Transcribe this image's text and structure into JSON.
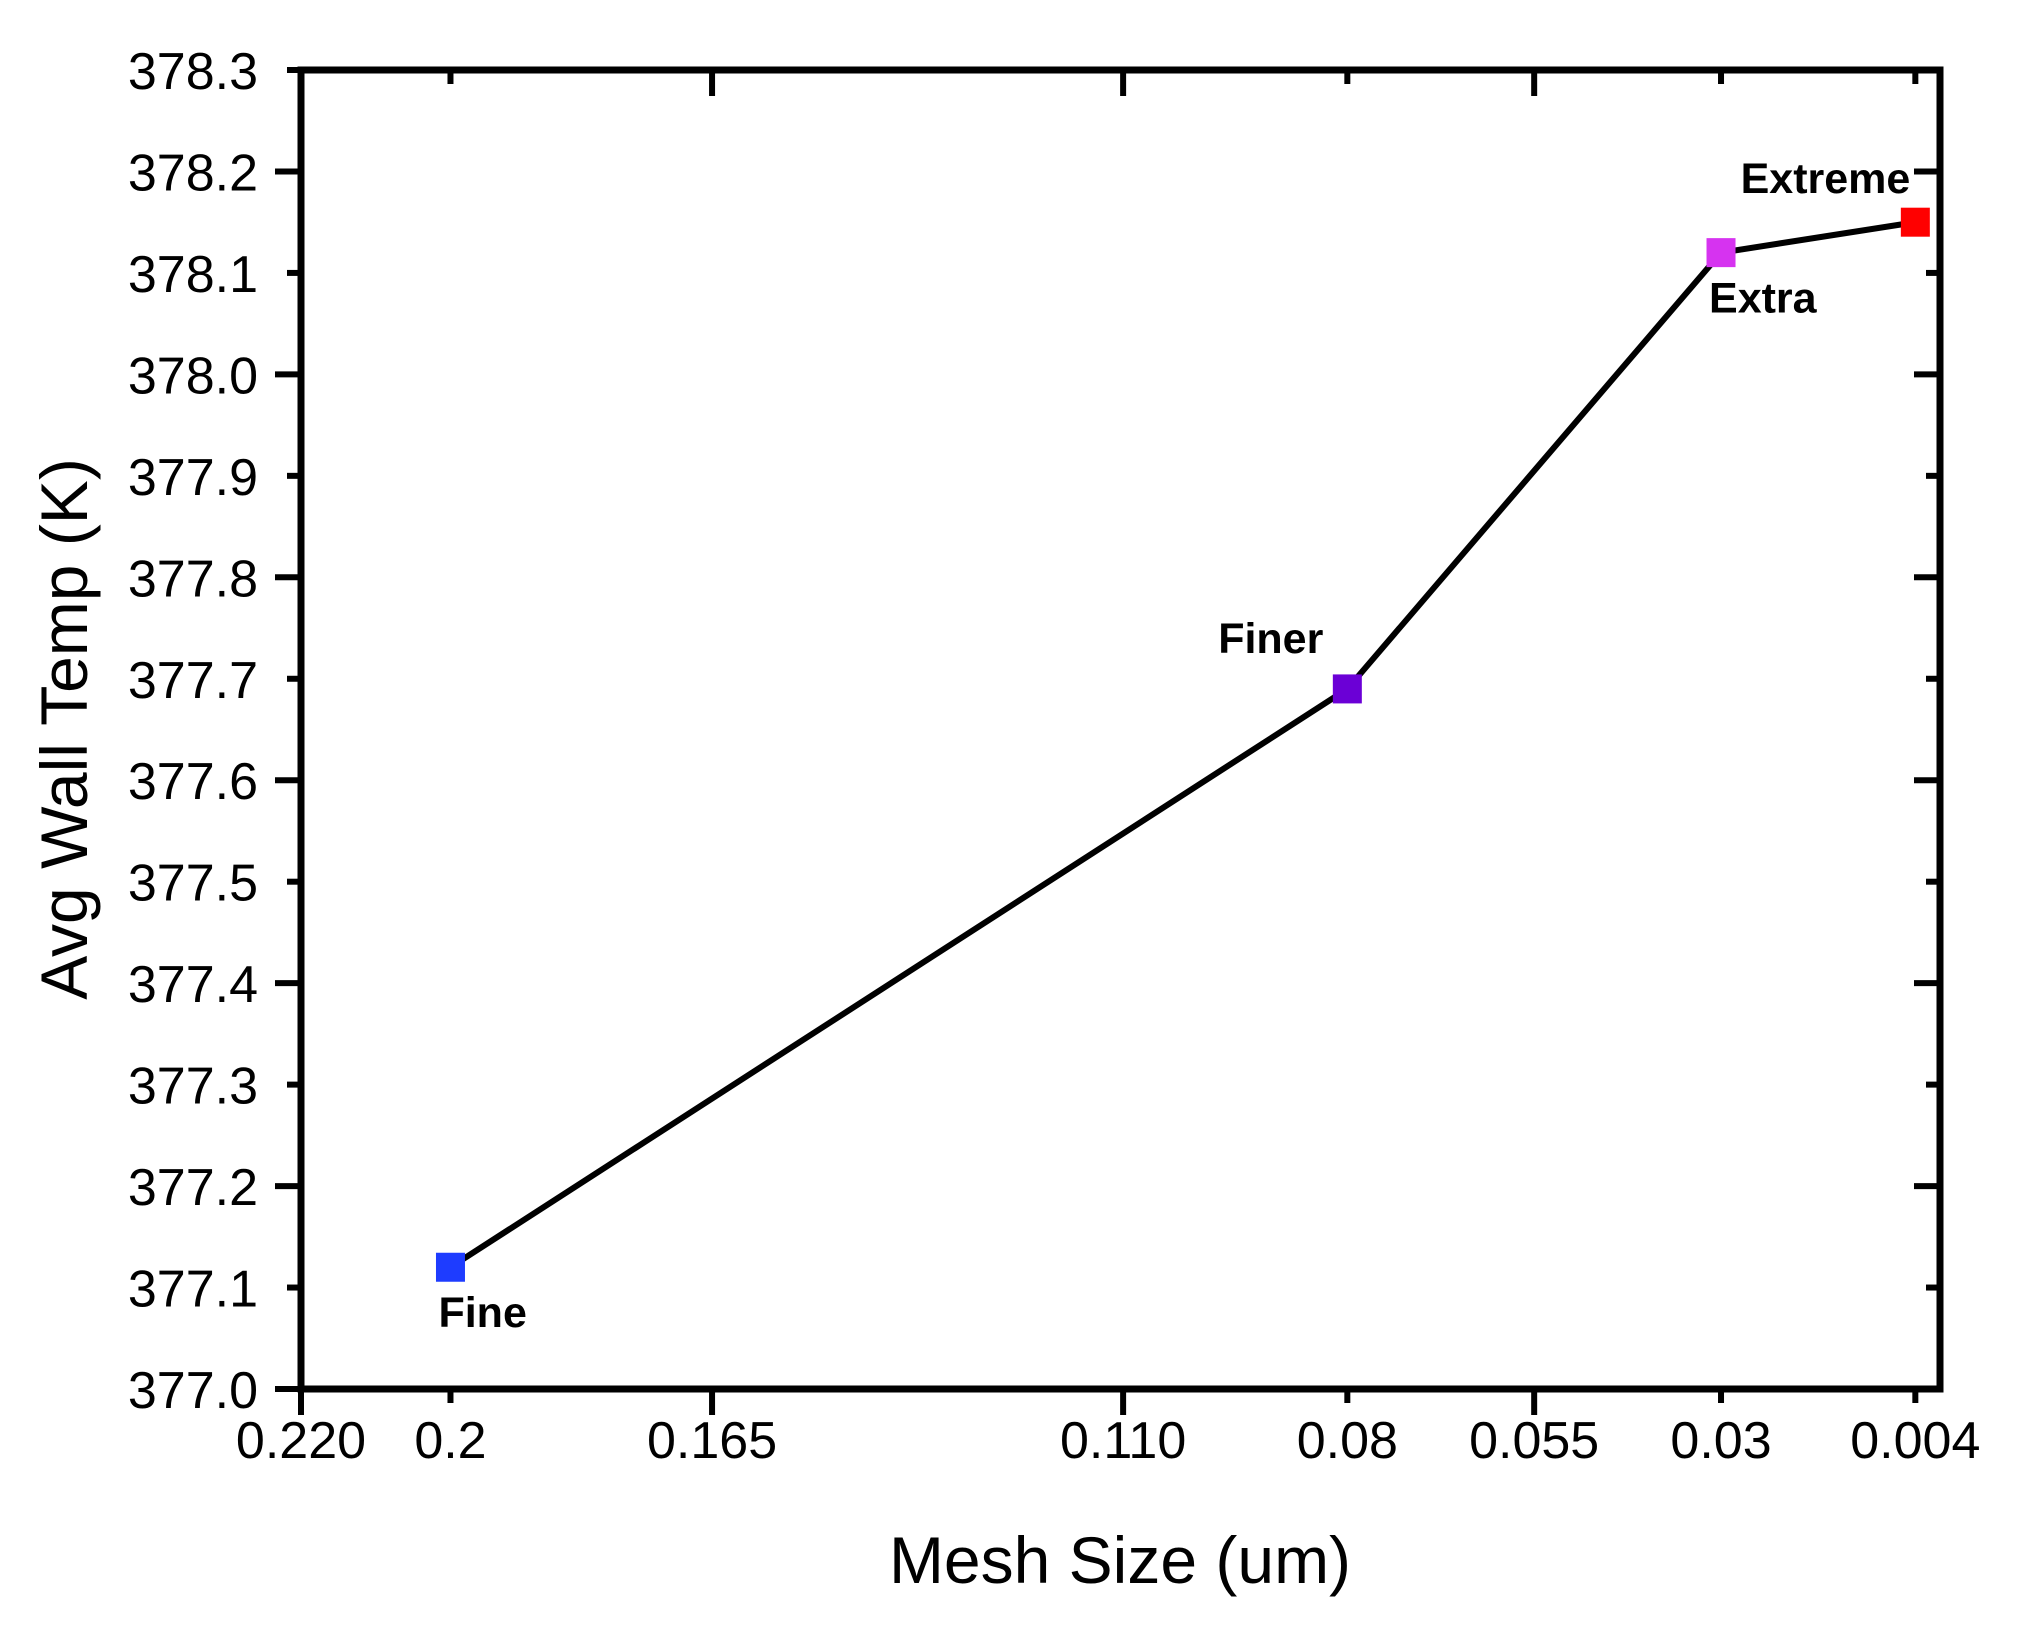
{
  "chart_data": {
    "type": "line",
    "title": "",
    "xlabel": "Mesh Size (um)",
    "ylabel": "Avg Wall Temp (K)",
    "x_reversed": true,
    "xlim": [
      0.22,
      0.0007
    ],
    "ylim": [
      377.0,
      378.3
    ],
    "grid": false,
    "legend": "none",
    "x_ticks": [
      {
        "value": 0.22,
        "label": "0.220",
        "major": true
      },
      {
        "value": 0.2,
        "label": "0.2",
        "major": false
      },
      {
        "value": 0.165,
        "label": "0.165",
        "major": true
      },
      {
        "value": 0.11,
        "label": "0.110",
        "major": true
      },
      {
        "value": 0.08,
        "label": "0.08",
        "major": false
      },
      {
        "value": 0.055,
        "label": "0.055",
        "major": true
      },
      {
        "value": 0.03,
        "label": "0.03",
        "major": false
      },
      {
        "value": 0.004,
        "label": "0.004",
        "major": false
      }
    ],
    "y_ticks": [
      {
        "value": 377.0,
        "label": "377.0",
        "major": true
      },
      {
        "value": 377.1,
        "label": "377.1",
        "major": false
      },
      {
        "value": 377.2,
        "label": "377.2",
        "major": true
      },
      {
        "value": 377.3,
        "label": "377.3",
        "major": false
      },
      {
        "value": 377.4,
        "label": "377.4",
        "major": true
      },
      {
        "value": 377.5,
        "label": "377.5",
        "major": false
      },
      {
        "value": 377.6,
        "label": "377.6",
        "major": true
      },
      {
        "value": 377.7,
        "label": "377.7",
        "major": false
      },
      {
        "value": 377.8,
        "label": "377.8",
        "major": true
      },
      {
        "value": 377.9,
        "label": "377.9",
        "major": false
      },
      {
        "value": 378.0,
        "label": "378.0",
        "major": true
      },
      {
        "value": 378.1,
        "label": "378.1",
        "major": false
      },
      {
        "value": 378.2,
        "label": "378.2",
        "major": true
      },
      {
        "value": 378.3,
        "label": "378.3",
        "major": false
      }
    ],
    "series": [
      {
        "name": "Avg Wall Temp",
        "line_color": "#000000",
        "points": [
          {
            "x": 0.2,
            "y": 377.12,
            "label": "Fine",
            "color": "#1E3CFF",
            "label_pos": "below-right"
          },
          {
            "x": 0.08,
            "y": 377.69,
            "label": "Finer",
            "color": "#6B00D6",
            "label_pos": "above-left"
          },
          {
            "x": 0.03,
            "y": 378.12,
            "label": "Extra",
            "color": "#D633F0",
            "label_pos": "below-right"
          },
          {
            "x": 0.004,
            "y": 378.15,
            "label": "Extreme",
            "color": "#FF0000",
            "label_pos": "above-left"
          }
        ]
      }
    ]
  }
}
